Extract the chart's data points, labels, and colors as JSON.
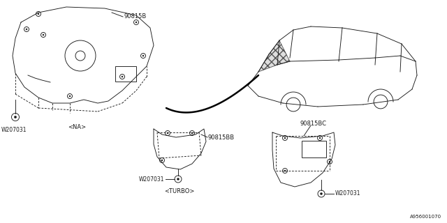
{
  "bg_color": "#ffffff",
  "line_color": "#1a1a1a",
  "footer": "A956001070",
  "label_90815B": "90815B",
  "label_90815BB": "90815BB",
  "label_90815BC": "90815BC",
  "label_W207031": "W207031",
  "label_na": "<NA>",
  "label_turbo": "<TURBO>"
}
